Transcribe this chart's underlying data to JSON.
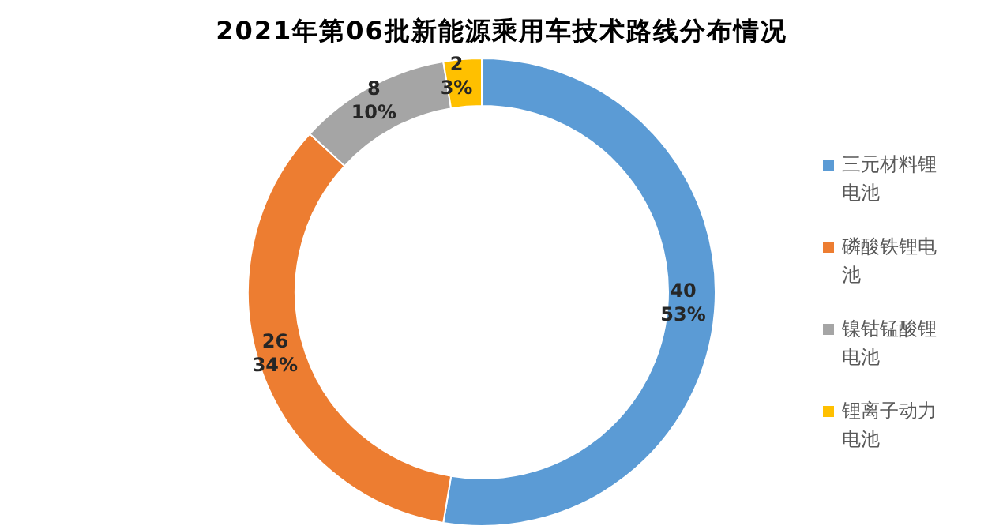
{
  "chart_data": {
    "type": "donut",
    "title": "2021年第06批新能源乘用车技术路线分布情况",
    "categories": [
      "三元材料锂电池",
      "磷酸铁锂电池",
      "镍钴锰酸锂电池",
      "锂离子动力电池"
    ],
    "values": [
      40,
      26,
      8,
      2
    ],
    "value_labels": [
      "40\n53%",
      "26\n34%",
      "8\n10%",
      "2\n3%"
    ],
    "colors": [
      "#5b9bd5",
      "#ed7d31",
      "#a5a5a5",
      "#ffc000"
    ],
    "legend": "right"
  }
}
